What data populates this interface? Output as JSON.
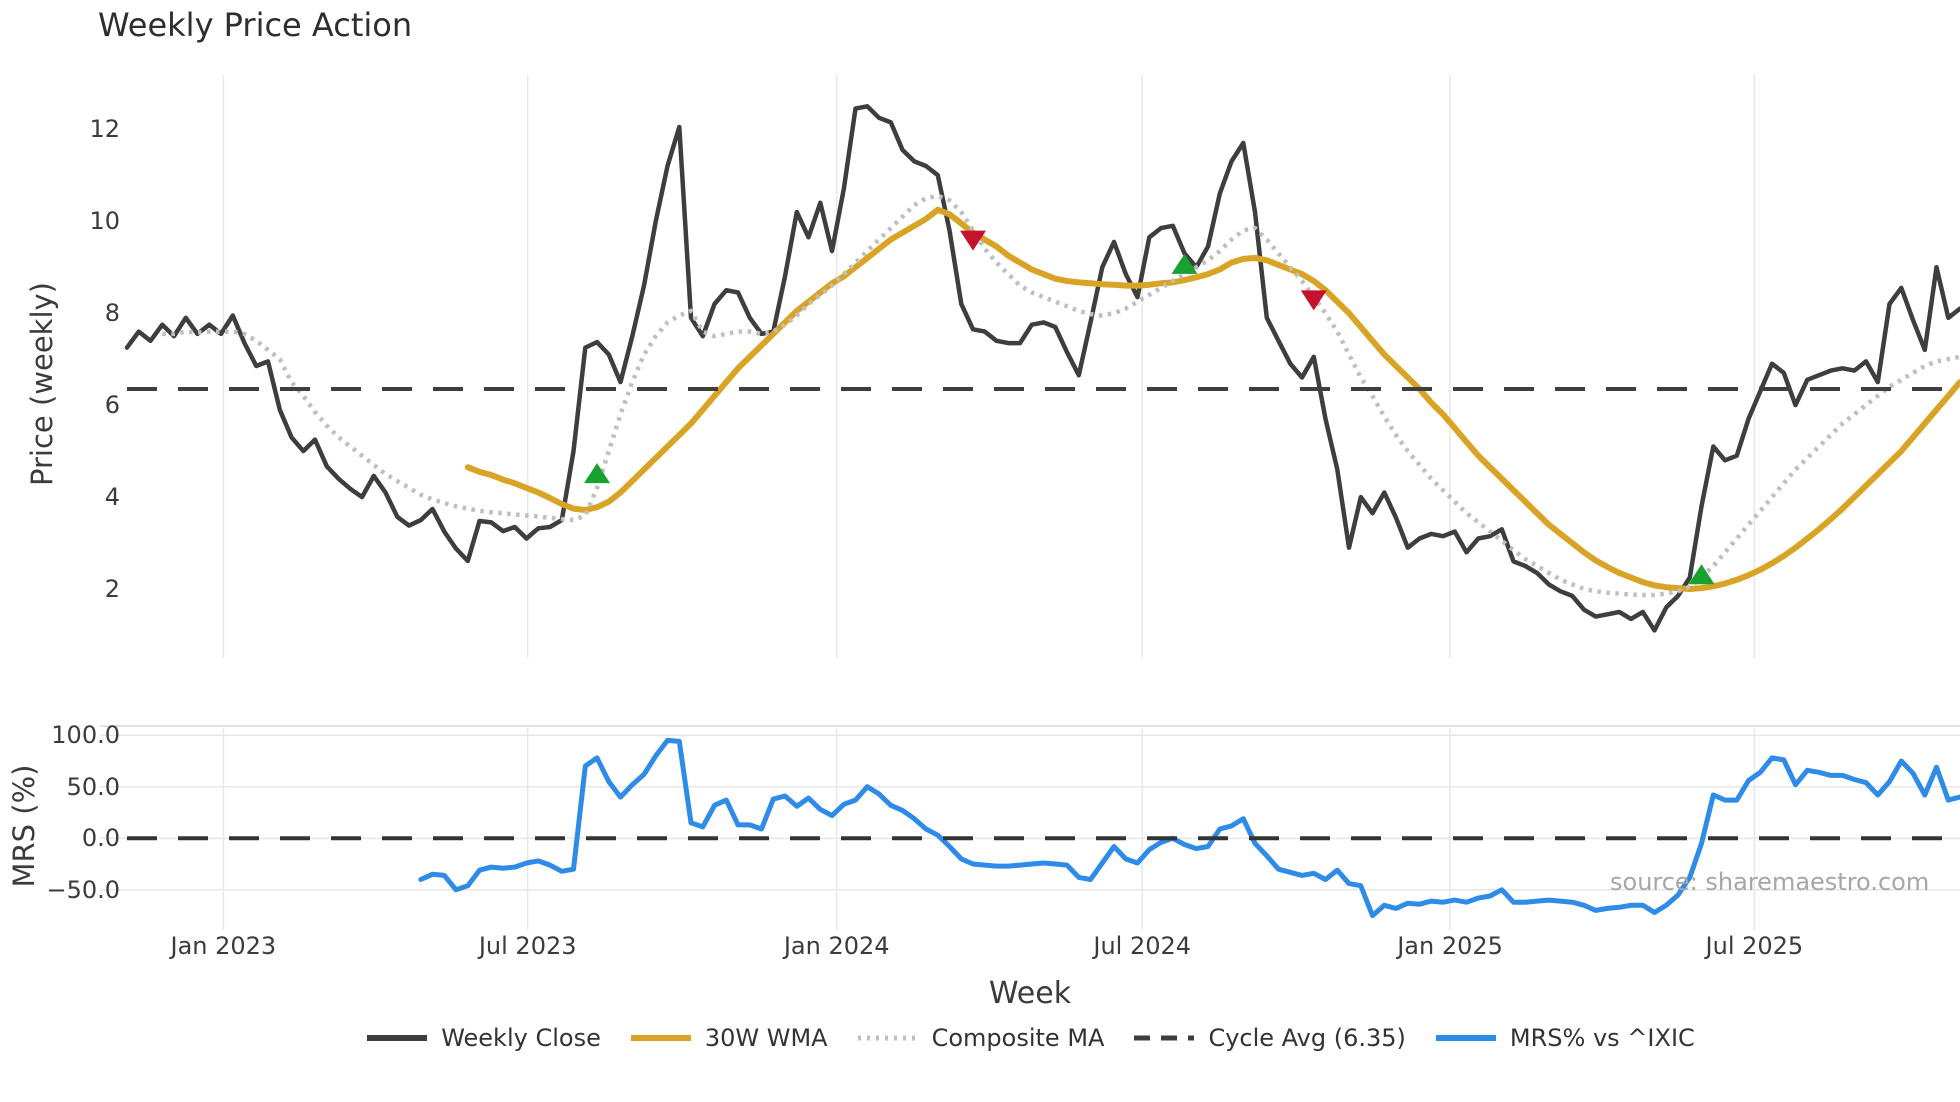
{
  "title": "Weekly Price Action",
  "source_text": "source: sharemaestro.com",
  "x_axis": {
    "label": "Week"
  },
  "price_axis": {
    "label": "Price (weekly)"
  },
  "mrs_axis": {
    "label": "MRS (%)"
  },
  "colors": {
    "close": "#3e3e3e",
    "wma": "#d9a426",
    "composite": "#bfbfbf",
    "cycle_avg": "#3e3e3e",
    "mrs": "#2e8be8",
    "buy": "#17a12e",
    "sell": "#c41230",
    "grid": "#e8e8e8",
    "spine": "#d8d8d8",
    "tick_text": "#3b3b3b"
  },
  "legend": {
    "items": [
      {
        "label": "Weekly Close",
        "color": "#3e3e3e",
        "dash": "",
        "width": 6
      },
      {
        "label": "30W WMA",
        "color": "#d9a426",
        "dash": "",
        "width": 6
      },
      {
        "label": "Composite MA",
        "color": "#bfbfbf",
        "dash": "3 6",
        "width": 5
      },
      {
        "label": "Cycle Avg (6.35)",
        "color": "#3e3e3e",
        "dash": "16 11",
        "width": 5
      },
      {
        "label": "MRS% vs ^IXIC",
        "color": "#2e8be8",
        "dash": "",
        "width": 6
      }
    ]
  },
  "chart_data": {
    "type": "line",
    "x_unit": "week index (weekly bars, ~Nov 2022 to Nov 2025)",
    "xlim": [
      -2.3,
      156
    ],
    "grid": "vertical in both panels, horizontal in MRS panel",
    "legend_position": "bottom center",
    "xticks": [
      {
        "week": 8.2,
        "label": "Jan 2023"
      },
      {
        "week": 34.1,
        "label": "Jul 2023"
      },
      {
        "week": 60.4,
        "label": "Jan 2024"
      },
      {
        "week": 86.4,
        "label": "Jul 2024"
      },
      {
        "week": 112.6,
        "label": "Jan 2025"
      },
      {
        "week": 138.5,
        "label": "Jul 2025"
      }
    ],
    "panels": [
      {
        "id": "price",
        "ylabel": "Price (weekly)",
        "ylim": [
          0.5,
          13.18
        ],
        "yticks": [
          {
            "v": 12,
            "label": "12"
          },
          {
            "v": 10,
            "label": "10"
          },
          {
            "v": 8,
            "label": "8"
          },
          {
            "v": 6,
            "label": "6"
          },
          {
            "v": 4,
            "label": "4"
          },
          {
            "v": 2,
            "label": "2"
          }
        ],
        "series": [
          {
            "name": "Weekly Close",
            "color": "#3e3e3e",
            "width": 4.5,
            "dash": "",
            "x_start": 0,
            "values": [
              7.25,
              7.6,
              7.4,
              7.75,
              7.5,
              7.9,
              7.55,
              7.75,
              7.55,
              7.95,
              7.35,
              6.85,
              6.95,
              5.9,
              5.3,
              5.0,
              5.25,
              4.67,
              4.4,
              4.18,
              4.0,
              4.46,
              4.1,
              3.57,
              3.38,
              3.5,
              3.74,
              3.25,
              2.88,
              2.61,
              3.48,
              3.45,
              3.26,
              3.35,
              3.1,
              3.32,
              3.35,
              3.5,
              5.0,
              7.25,
              7.37,
              7.1,
              6.5,
              7.5,
              8.6,
              10.0,
              11.2,
              12.05,
              7.9,
              7.5,
              8.2,
              8.5,
              8.45,
              7.9,
              7.55,
              7.6,
              8.8,
              10.2,
              9.65,
              10.4,
              9.35,
              10.7,
              12.45,
              12.5,
              12.25,
              12.15,
              11.55,
              11.3,
              11.2,
              11.0,
              9.8,
              8.2,
              7.65,
              7.6,
              7.4,
              7.35,
              7.35,
              7.75,
              7.8,
              7.7,
              7.15,
              6.65,
              7.8,
              9.0,
              9.55,
              8.85,
              8.35,
              9.65,
              9.85,
              9.9,
              9.3,
              9.0,
              9.45,
              10.6,
              11.3,
              11.7,
              10.2,
              7.9,
              7.4,
              6.9,
              6.6,
              7.05,
              5.7,
              4.6,
              2.9,
              4.0,
              3.65,
              4.1,
              3.55,
              2.9,
              3.1,
              3.2,
              3.15,
              3.25,
              2.8,
              3.1,
              3.15,
              3.3,
              2.6,
              2.5,
              2.35,
              2.1,
              1.95,
              1.85,
              1.55,
              1.4,
              1.45,
              1.5,
              1.35,
              1.5,
              1.1,
              1.6,
              1.85,
              2.25,
              3.8,
              5.1,
              4.8,
              4.9,
              5.7,
              6.3,
              6.9,
              6.7,
              6.0,
              6.55,
              6.65,
              6.75,
              6.8,
              6.75,
              6.95,
              6.5,
              8.2,
              8.55,
              7.85,
              7.2,
              9.0,
              7.9,
              8.1
            ]
          },
          {
            "name": "30W WMA",
            "color": "#d9a426",
            "width": 6,
            "dash": "",
            "x_start": 29,
            "values": [
              4.65,
              4.55,
              4.48,
              4.38,
              4.3,
              4.2,
              4.1,
              3.98,
              3.85,
              3.75,
              3.72,
              3.78,
              3.9,
              4.1,
              4.35,
              4.6,
              4.85,
              5.1,
              5.35,
              5.6,
              5.9,
              6.2,
              6.5,
              6.8,
              7.05,
              7.3,
              7.55,
              7.8,
              8.05,
              8.25,
              8.45,
              8.65,
              8.8,
              9.0,
              9.2,
              9.4,
              9.6,
              9.75,
              9.9,
              10.05,
              10.25,
              10.15,
              9.95,
              9.75,
              9.6,
              9.45,
              9.25,
              9.1,
              8.95,
              8.85,
              8.75,
              8.7,
              8.67,
              8.65,
              8.63,
              8.62,
              8.6,
              8.6,
              8.62,
              8.65,
              8.67,
              8.72,
              8.78,
              8.85,
              8.95,
              9.1,
              9.18,
              9.2,
              9.15,
              9.05,
              8.95,
              8.85,
              8.7,
              8.5,
              8.25,
              8.0,
              7.7,
              7.4,
              7.1,
              6.85,
              6.6,
              6.35,
              6.05,
              5.8,
              5.5,
              5.2,
              4.9,
              4.65,
              4.4,
              4.15,
              3.9,
              3.65,
              3.4,
              3.2,
              3.0,
              2.8,
              2.62,
              2.48,
              2.35,
              2.25,
              2.15,
              2.08,
              2.04,
              2.02,
              2.0,
              2.02,
              2.06,
              2.12,
              2.2,
              2.3,
              2.42,
              2.56,
              2.72,
              2.9,
              3.1,
              3.3,
              3.52,
              3.75,
              4.0,
              4.25,
              4.5,
              4.75,
              5.0,
              5.3,
              5.6,
              5.9,
              6.2,
              6.5
            ]
          },
          {
            "name": "Composite MA",
            "color": "#bfbfbf",
            "width": 4.5,
            "dash": "3.5 5.5",
            "x_start": 3,
            "values": [
              7.55,
              7.55,
              7.6,
              7.58,
              7.6,
              7.6,
              7.6,
              7.55,
              7.4,
              7.2,
              7.0,
              6.5,
              6.2,
              5.85,
              5.55,
              5.3,
              5.1,
              4.9,
              4.7,
              4.5,
              4.35,
              4.2,
              4.05,
              3.95,
              3.87,
              3.8,
              3.75,
              3.7,
              3.67,
              3.65,
              3.62,
              3.6,
              3.58,
              3.55,
              3.52,
              3.5,
              3.6,
              4.2,
              5.0,
              5.8,
              6.5,
              7.1,
              7.5,
              7.8,
              7.95,
              8.05,
              7.6,
              7.5,
              7.55,
              7.6,
              7.6,
              7.55,
              7.6,
              7.75,
              7.95,
              8.2,
              8.4,
              8.6,
              8.85,
              9.1,
              9.35,
              9.6,
              9.85,
              10.1,
              10.35,
              10.5,
              10.55,
              10.45,
              10.2,
              9.8,
              9.4,
              9.1,
              8.85,
              8.6,
              8.45,
              8.35,
              8.25,
              8.15,
              8.05,
              7.98,
              7.95,
              8.0,
              8.1,
              8.25,
              8.4,
              8.55,
              8.7,
              8.85,
              9.0,
              9.15,
              9.35,
              9.6,
              9.8,
              9.85,
              9.6,
              9.3,
              9.0,
              8.7,
              8.35,
              8.0,
              7.6,
              7.1,
              6.6,
              6.2,
              5.75,
              5.35,
              5.0,
              4.7,
              4.4,
              4.15,
              3.9,
              3.65,
              3.45,
              3.25,
              3.05,
              2.85,
              2.65,
              2.5,
              2.35,
              2.2,
              2.1,
              2.0,
              1.95,
              1.92,
              1.9,
              1.88,
              1.87,
              1.87,
              1.9,
              1.95,
              2.05,
              2.25,
              2.5,
              2.8,
              3.1,
              3.4,
              3.7,
              4.0,
              4.3,
              4.6,
              4.85,
              5.1,
              5.35,
              5.6,
              5.8,
              6.0,
              6.2,
              6.4,
              6.55,
              6.7,
              6.85,
              6.95,
              7.0,
              7.05
            ]
          },
          {
            "name": "Cycle Avg (6.35)",
            "color": "#3e3e3e",
            "width": 4,
            "dash": "30 21",
            "x_start": 0,
            "x_end": 156,
            "const": 6.35
          }
        ],
        "markers": [
          {
            "name": "buy-signal",
            "shape": "triangle-up",
            "color": "#17a12e",
            "points": [
              [
                40,
                4.5
              ],
              [
                90,
                9.05
              ],
              [
                134,
                2.3
              ]
            ]
          },
          {
            "name": "sell-signal",
            "shape": "triangle-down",
            "color": "#c41230",
            "points": [
              [
                72,
                9.6
              ],
              [
                101,
                8.3
              ]
            ]
          }
        ]
      },
      {
        "id": "mrs",
        "ylabel": "MRS (%)",
        "ylim": [
          -89,
          107
        ],
        "grid_y": true,
        "spine_top": true,
        "yticks": [
          {
            "v": 100,
            "label": "100.0"
          },
          {
            "v": 50,
            "label": "50.0"
          },
          {
            "v": 0,
            "label": "0.0"
          },
          {
            "v": -50,
            "label": "−50.0"
          }
        ],
        "series": [
          {
            "name": "MRS% vs ^IXIC",
            "color": "#2e8be8",
            "width": 5,
            "dash": "",
            "x_start": 25,
            "values": [
              -40,
              -35,
              -36,
              -50,
              -46,
              -31,
              -28,
              -29,
              -28,
              -24,
              -22,
              -26,
              -32,
              -30,
              70,
              78,
              55,
              40,
              52,
              62,
              80,
              95,
              94,
              15,
              11,
              32,
              37,
              13,
              13,
              9,
              38,
              41,
              31,
              39,
              28,
              22,
              33,
              37,
              50,
              43,
              32,
              27,
              19,
              9,
              3,
              -8,
              -20,
              -25,
              -26,
              -27,
              -27,
              -26,
              -25,
              -24,
              -25,
              -26,
              -38,
              -40,
              -24,
              -8,
              -20,
              -24,
              -11,
              -4,
              0,
              -6,
              -10,
              -8,
              9,
              12,
              19,
              -5,
              -17,
              -30,
              -33,
              -36,
              -34,
              -40,
              -31,
              -44,
              -46,
              -75,
              -65,
              -68,
              -63,
              -64,
              -61,
              -62,
              -60,
              -62,
              -58,
              -56,
              -50,
              -62,
              -62,
              -61,
              -60,
              -61,
              -62,
              -65,
              -70,
              -68,
              -67,
              -65,
              -65,
              -72,
              -65,
              -55,
              -38,
              -5,
              42,
              37,
              37,
              56,
              64,
              78,
              76,
              52,
              66,
              64,
              61,
              61,
              57,
              54,
              42,
              55,
              75,
              63,
              42,
              69,
              37,
              40
            ]
          },
          {
            "name": "Zero line",
            "color": "#333333",
            "width": 4,
            "dash": "30 21",
            "x_start": 0,
            "x_end": 156,
            "const": 0
          }
        ]
      }
    ]
  }
}
